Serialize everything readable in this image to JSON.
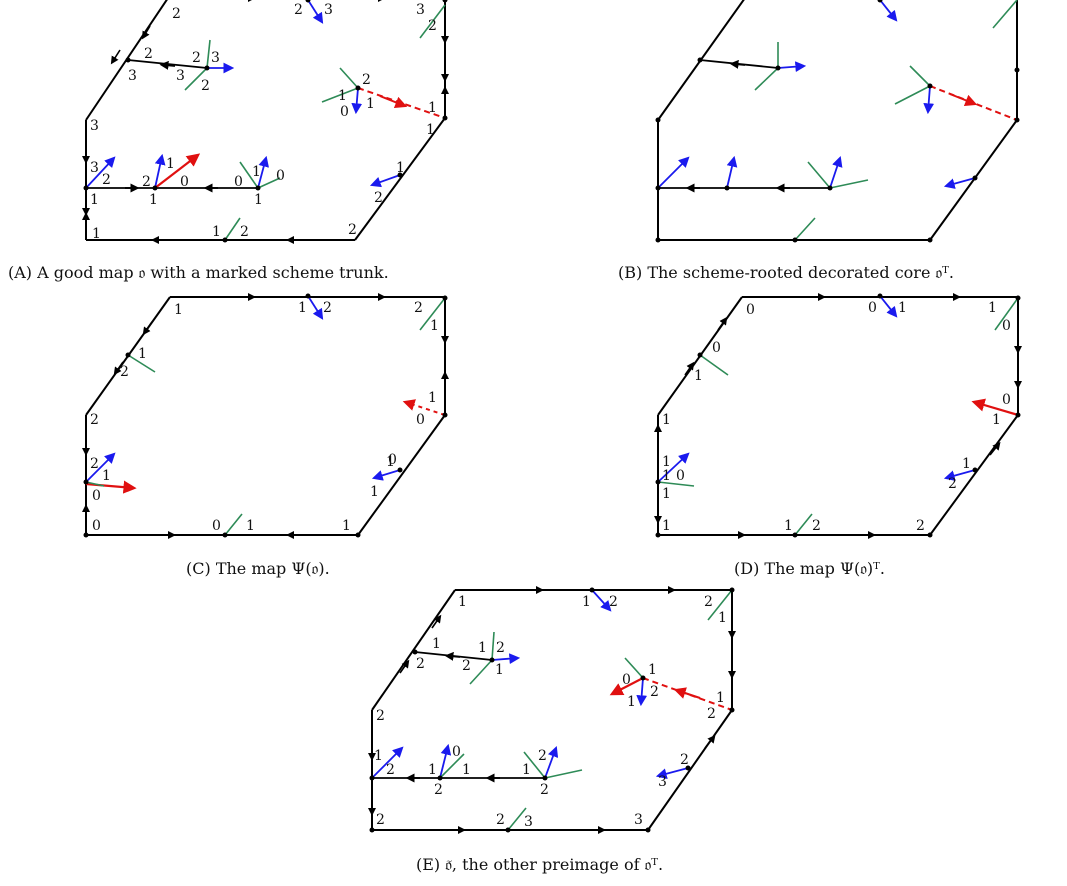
{
  "figure": {
    "panels": [
      {
        "id": "A",
        "caption": "(A) A good map 𝔬 with a marked scheme trunk.",
        "labels": [
          "2",
          "2",
          "3",
          "3",
          "2",
          "2",
          "3",
          "3",
          "2",
          "3",
          "2",
          "1",
          "0",
          "1",
          "2",
          "1",
          "3",
          "3",
          "2",
          "1",
          "2",
          "1",
          "1",
          "1",
          "0",
          "0",
          "1",
          "0",
          "1",
          "1",
          "1",
          "2",
          "2",
          "2",
          "1"
        ]
      },
      {
        "id": "B",
        "caption": "(B) The scheme-rooted decorated core 𝔬ᵀ.",
        "labels": []
      },
      {
        "id": "C",
        "caption": "(C) The map Ψ(𝔬).",
        "labels": [
          "1",
          "1",
          "2",
          "2",
          "1",
          "1",
          "2",
          "1",
          "0",
          "2",
          "2",
          "1",
          "0",
          "0",
          "1",
          "0",
          "1",
          "0",
          "0",
          "1",
          "1"
        ]
      },
      {
        "id": "D",
        "caption": "(D) The map Ψ(𝔬)ᵀ.",
        "labels": [
          "0",
          "0",
          "1",
          "1",
          "0",
          "0",
          "1",
          "0",
          "0",
          "1",
          "1",
          "1",
          "1",
          "0",
          "1",
          "1",
          "2",
          "1",
          "1",
          "2",
          "2"
        ]
      },
      {
        "id": "E",
        "caption": "(E) 𝔬̃, the other preimage of 𝔬ᵀ.",
        "labels": [
          "1",
          "1",
          "2",
          "2",
          "1",
          "1",
          "2",
          "1",
          "2",
          "1",
          "2",
          "1",
          "1",
          "0",
          "1",
          "2",
          "1",
          "2",
          "2",
          "1",
          "2",
          "1",
          "0",
          "2",
          "1",
          "1",
          "1",
          "2",
          "2",
          "2",
          "3",
          "2",
          "3",
          "2",
          "3"
        ]
      }
    ]
  }
}
